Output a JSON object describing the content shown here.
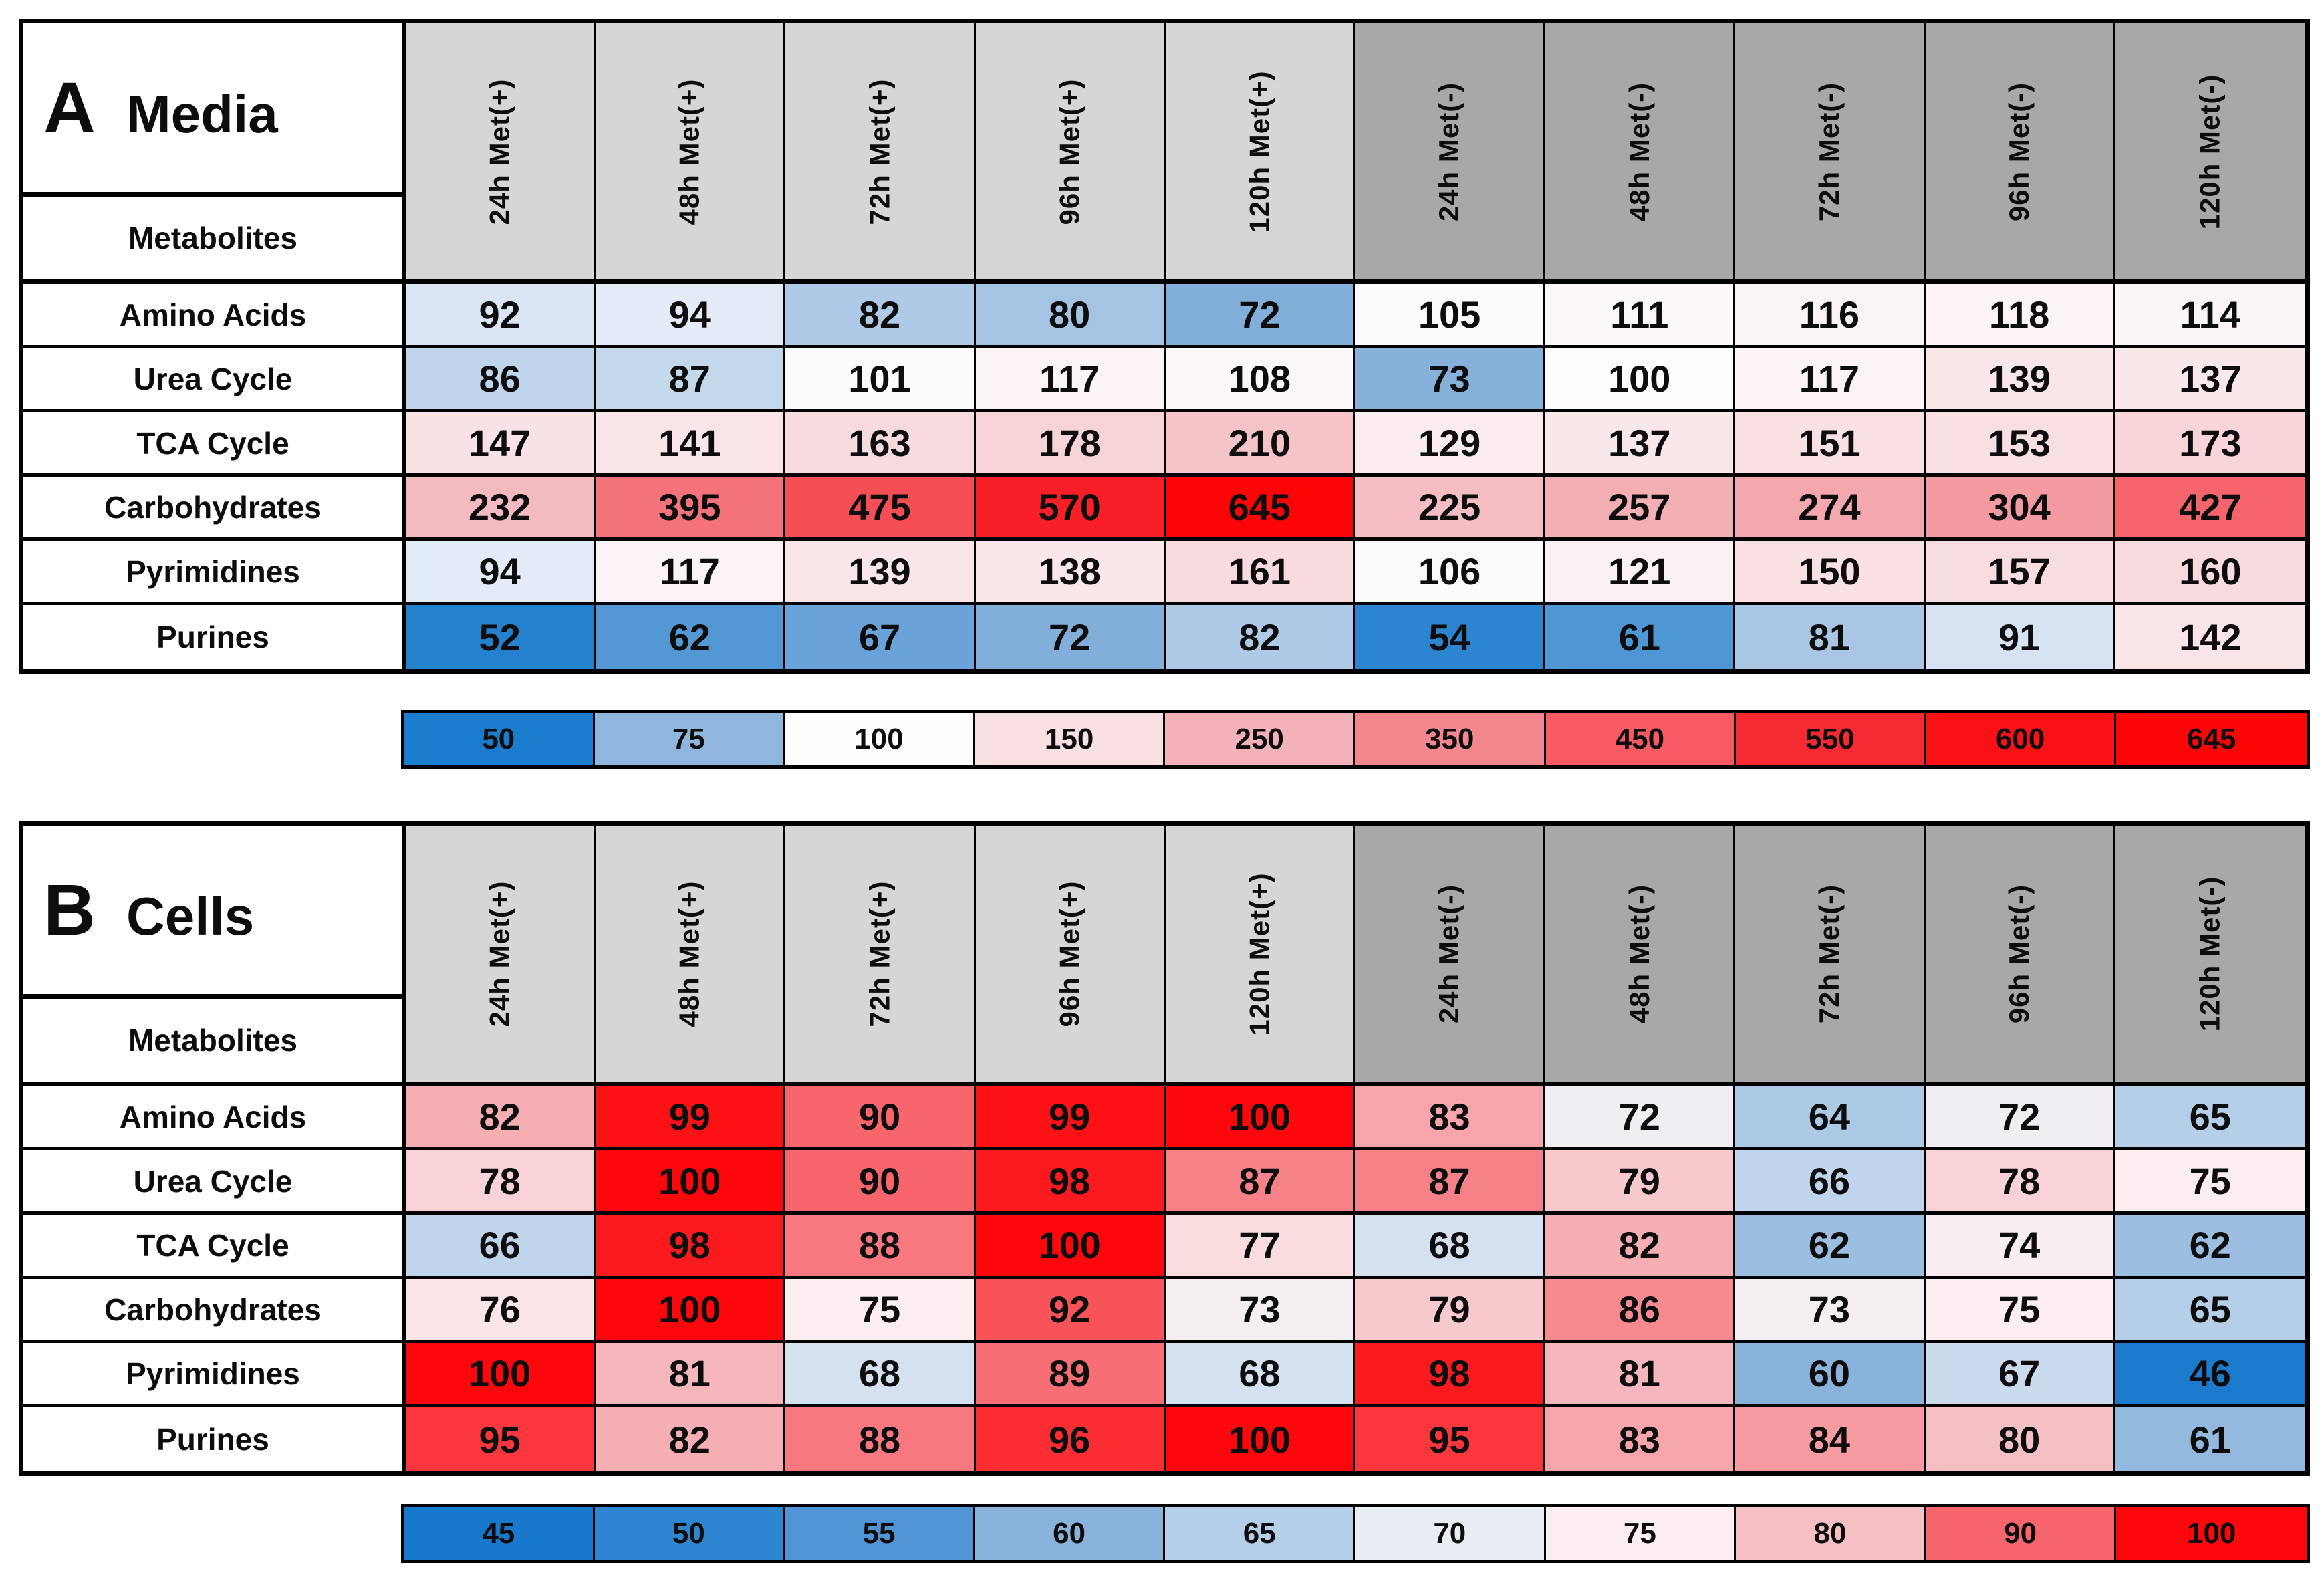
{
  "page": {
    "background": "#ffffff"
  },
  "colors": {
    "met_plus_header_bg": "#d6d6d6",
    "met_minus_header_bg": "#a8a8a8",
    "grid_line": "#000000",
    "text": "#0d0d0d"
  },
  "chart_data": [
    {
      "type": "heatmap",
      "panel_letter": "A",
      "panel_title": "Media",
      "row_axis_label": "Metabolites",
      "columns": [
        "24h Met(+)",
        "48h Met(+)",
        "72h Met(+)",
        "96h Met(+)",
        "120h Met(+)",
        "24h Met(-)",
        "48h Met(-)",
        "72h Met(-)",
        "96h Met(-)",
        "120h Met(-)"
      ],
      "column_groups": {
        "met_plus_count": 5,
        "met_minus_count": 5
      },
      "rows": [
        "Amino Acids",
        "Urea Cycle",
        "TCA Cycle",
        "Carbohydrates",
        "Pyrimidines",
        "Purines"
      ],
      "values": [
        [
          92,
          94,
          82,
          80,
          72,
          105,
          111,
          116,
          118,
          114
        ],
        [
          86,
          87,
          101,
          117,
          108,
          73,
          100,
          117,
          139,
          137
        ],
        [
          147,
          141,
          163,
          178,
          210,
          129,
          137,
          151,
          153,
          173
        ],
        [
          232,
          395,
          475,
          570,
          645,
          225,
          257,
          274,
          304,
          427
        ],
        [
          94,
          117,
          139,
          138,
          161,
          106,
          121,
          150,
          157,
          160
        ],
        [
          52,
          62,
          67,
          72,
          82,
          54,
          61,
          81,
          91,
          142
        ]
      ],
      "legend": {
        "position": "bottom",
        "stops": [
          {
            "value": 50,
            "color": "#1b7ccd"
          },
          {
            "value": 75,
            "color": "#8fb6dc"
          },
          {
            "value": 100,
            "color": "#fdfdfe"
          },
          {
            "value": 150,
            "color": "#f8e0e3"
          },
          {
            "value": 250,
            "color": "#f2b2b7"
          },
          {
            "value": 350,
            "color": "#f4878d"
          },
          {
            "value": 450,
            "color": "#f55b61"
          },
          {
            "value": 550,
            "color": "#f62a31"
          },
          {
            "value": 600,
            "color": "#fa1115"
          },
          {
            "value": 645,
            "color": "#fd0407"
          }
        ]
      }
    },
    {
      "type": "heatmap",
      "panel_letter": "B",
      "panel_title": "Cells",
      "row_axis_label": "Metabolites",
      "columns": [
        "24h Met(+)",
        "48h Met(+)",
        "72h Met(+)",
        "96h Met(+)",
        "120h Met(+)",
        "24h Met(-)",
        "48h Met(-)",
        "72h Met(-)",
        "96h Met(-)",
        "120h Met(-)"
      ],
      "column_groups": {
        "met_plus_count": 5,
        "met_minus_count": 5
      },
      "rows": [
        "Amino Acids",
        "Urea Cycle",
        "TCA Cycle",
        "Carbohydrates",
        "Pyrimidines",
        "Purines"
      ],
      "values": [
        [
          82,
          99,
          90,
          99,
          100,
          83,
          72,
          64,
          72,
          65
        ],
        [
          78,
          100,
          90,
          98,
          87,
          87,
          79,
          66,
          78,
          75
        ],
        [
          66,
          98,
          88,
          100,
          77,
          68,
          82,
          62,
          74,
          62
        ],
        [
          76,
          100,
          75,
          92,
          73,
          79,
          86,
          73,
          75,
          65
        ],
        [
          100,
          81,
          68,
          89,
          68,
          98,
          81,
          60,
          67,
          46
        ],
        [
          95,
          82,
          88,
          96,
          100,
          95,
          83,
          84,
          80,
          61
        ]
      ],
      "legend": {
        "position": "bottom",
        "stops": [
          {
            "value": 45,
            "color": "#1878cc"
          },
          {
            "value": 50,
            "color": "#2e85d0"
          },
          {
            "value": 55,
            "color": "#4f94d4"
          },
          {
            "value": 60,
            "color": "#8ab3dc"
          },
          {
            "value": 65,
            "color": "#b5cfe8"
          },
          {
            "value": 70,
            "color": "#e9eef5"
          },
          {
            "value": 75,
            "color": "#fceef0"
          },
          {
            "value": 80,
            "color": "#f5c0c4"
          },
          {
            "value": 90,
            "color": "#f7666c"
          },
          {
            "value": 100,
            "color": "#fc070b"
          }
        ]
      }
    }
  ]
}
